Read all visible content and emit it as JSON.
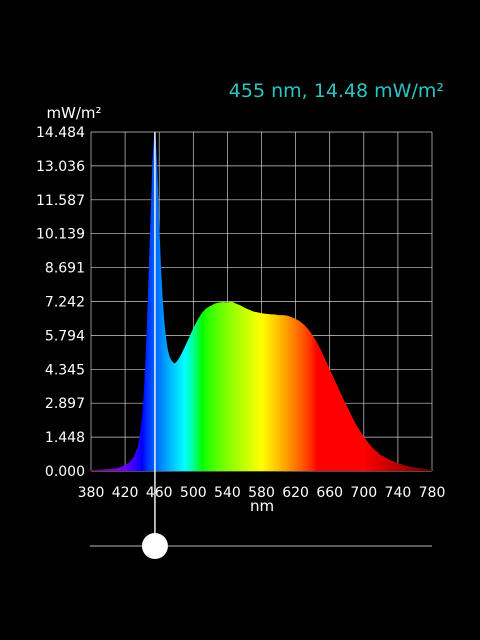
{
  "readout": {
    "wavelength": 455,
    "irradiance": 14.48,
    "text": "455 nm, 14.48 mW/m²"
  },
  "colors": {
    "background": "#000000",
    "readout_text": "#2bc4c4",
    "grid": "#cfcfcf",
    "axis_text": "#ffffff",
    "cursor": "#ffffff"
  },
  "slider": {
    "value_nm": 455,
    "range_nm": [
      380,
      780
    ]
  },
  "chart_data": {
    "type": "area",
    "title": "",
    "xlabel": "nm",
    "ylabel": "mW/m²",
    "xlim": [
      380,
      780
    ],
    "ylim": [
      0,
      14.484
    ],
    "grid": true,
    "legend": "none",
    "fill": "visible-spectrum color gradient",
    "x_ticks": [
      380,
      420,
      460,
      500,
      540,
      580,
      620,
      660,
      700,
      740,
      780
    ],
    "x_tick_labels": [
      "380",
      "420",
      "460",
      "500",
      "540",
      "580",
      "620",
      "660",
      "700",
      "740",
      "780"
    ],
    "y_ticks": [
      0,
      1.448,
      2.897,
      4.345,
      5.794,
      7.242,
      8.691,
      10.139,
      11.587,
      13.036,
      14.484
    ],
    "y_tick_labels": [
      "0.000",
      "1.448",
      "2.897",
      "4.345",
      "5.794",
      "7.242",
      "8.691",
      "10.139",
      "11.587",
      "13.036",
      "14.484"
    ],
    "x": [
      380,
      400,
      410,
      415,
      420,
      425,
      430,
      435,
      438,
      440,
      442,
      444,
      446,
      448,
      450,
      452,
      454,
      455,
      456,
      458,
      460,
      462,
      464,
      466,
      468,
      470,
      472,
      474,
      476,
      478,
      480,
      483,
      486,
      490,
      495,
      500,
      505,
      510,
      515,
      520,
      525,
      530,
      535,
      540,
      545,
      550,
      555,
      560,
      565,
      570,
      575,
      580,
      585,
      590,
      595,
      600,
      605,
      610,
      615,
      620,
      625,
      630,
      635,
      640,
      645,
      650,
      655,
      660,
      665,
      670,
      675,
      680,
      690,
      700,
      710,
      720,
      730,
      740,
      750,
      760,
      770,
      780
    ],
    "y": [
      0.05,
      0.08,
      0.12,
      0.17,
      0.25,
      0.37,
      0.6,
      1.05,
      1.7,
      2.4,
      3.4,
      4.9,
      6.7,
      8.9,
      11.0,
      13.2,
      14.4,
      14.48,
      14.2,
      12.7,
      10.6,
      8.8,
      7.4,
      6.4,
      5.7,
      5.2,
      4.9,
      4.75,
      4.65,
      4.6,
      4.65,
      4.8,
      5.0,
      5.3,
      5.7,
      6.1,
      6.45,
      6.75,
      6.95,
      7.05,
      7.15,
      7.2,
      7.22,
      7.2,
      7.24,
      7.15,
      7.08,
      6.98,
      6.9,
      6.82,
      6.78,
      6.74,
      6.72,
      6.7,
      6.69,
      6.66,
      6.66,
      6.64,
      6.58,
      6.5,
      6.4,
      6.25,
      6.05,
      5.8,
      5.5,
      5.15,
      4.75,
      4.35,
      3.95,
      3.55,
      3.15,
      2.78,
      2.05,
      1.45,
      1.0,
      0.68,
      0.48,
      0.33,
      0.22,
      0.15,
      0.1,
      0.05
    ]
  }
}
